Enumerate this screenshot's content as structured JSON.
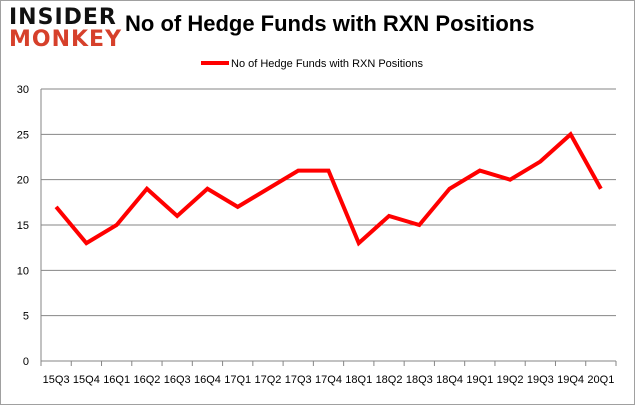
{
  "logo": {
    "line1": "INSIDER",
    "line2": "MONKEY"
  },
  "chart_data": {
    "type": "line",
    "title": "No of Hedge Funds with RXN Positions",
    "xlabel": "",
    "ylabel": "",
    "categories": [
      "15Q3",
      "15Q4",
      "16Q1",
      "16Q2",
      "16Q3",
      "16Q4",
      "17Q1",
      "17Q2",
      "17Q3",
      "17Q4",
      "18Q1",
      "18Q2",
      "18Q3",
      "18Q4",
      "19Q1",
      "19Q2",
      "19Q3",
      "19Q4",
      "20Q1"
    ],
    "series": [
      {
        "name": "No of Hedge Funds with RXN Positions",
        "color": "#ff0000",
        "values": [
          17,
          13,
          15,
          19,
          16,
          19,
          17,
          19,
          21,
          21,
          13,
          16,
          15,
          19,
          21,
          20,
          22,
          25,
          19
        ]
      }
    ],
    "ylim": [
      0,
      30
    ],
    "yticks": [
      0,
      5,
      10,
      15,
      20,
      25,
      30
    ],
    "grid": true,
    "legend": "top-center"
  }
}
